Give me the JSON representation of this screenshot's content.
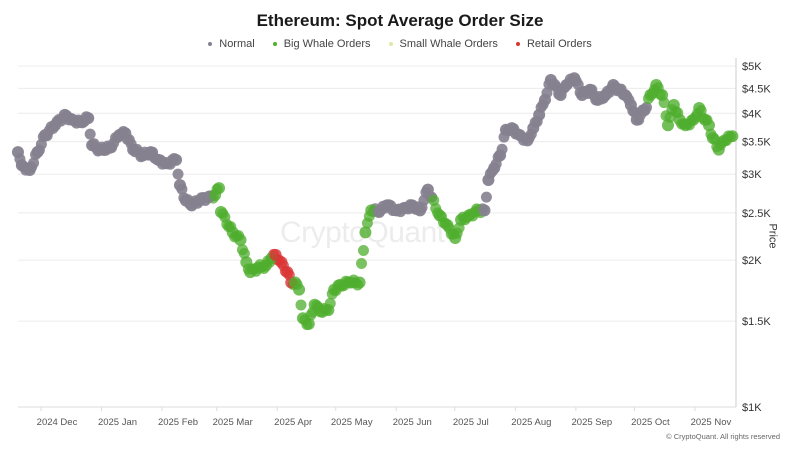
{
  "chart_data": {
    "type": "scatter",
    "title": "Ethereum: Spot Average Order Size",
    "ylabel": "Price",
    "xlabel": "",
    "yscale": "log",
    "ylim": [
      1000,
      5000
    ],
    "x_unit": "days since 2024-11-01",
    "xlim": [
      10,
      378
    ],
    "x_ticks": [
      {
        "day": 30,
        "label": "2024 Dec"
      },
      {
        "day": 61,
        "label": "2025 Jan"
      },
      {
        "day": 92,
        "label": "2025 Feb"
      },
      {
        "day": 120,
        "label": "2025 Mar"
      },
      {
        "day": 151,
        "label": "2025 Apr"
      },
      {
        "day": 181,
        "label": "2025 May"
      },
      {
        "day": 212,
        "label": "2025 Jun"
      },
      {
        "day": 242,
        "label": "2025 Jul"
      },
      {
        "day": 273,
        "label": "2025 Aug"
      },
      {
        "day": 304,
        "label": "2025 Sep"
      },
      {
        "day": 334,
        "label": "2025 Oct"
      },
      {
        "day": 365,
        "label": "2025 Nov"
      }
    ],
    "y_ticks": [
      {
        "value": 5000,
        "label": "$5K"
      },
      {
        "value": 4500,
        "label": "$4.5K"
      },
      {
        "value": 4000,
        "label": "$4K"
      },
      {
        "value": 3500,
        "label": "$3.5K"
      },
      {
        "value": 3000,
        "label": "$3K"
      },
      {
        "value": 2500,
        "label": "$2.5K"
      },
      {
        "value": 2000,
        "label": "$2K"
      },
      {
        "value": 1500,
        "label": "$1.5K"
      },
      {
        "value": 1000,
        "label": "$1K"
      }
    ],
    "legend_position": "top-center",
    "series": [
      {
        "key": "N",
        "name": "Normal",
        "color": "#85818f"
      },
      {
        "key": "B",
        "name": "Big Whale Orders",
        "color": "#4fae2e"
      },
      {
        "key": "S",
        "name": "Small Whale Orders",
        "color": "#dfe9a3"
      },
      {
        "key": "R",
        "name": "Retail Orders",
        "color": "#d93535"
      }
    ],
    "points": [
      [
        10,
        3330,
        "N"
      ],
      [
        12,
        3130,
        "N"
      ],
      [
        16,
        3060,
        "N"
      ],
      [
        20,
        3330,
        "N"
      ],
      [
        24,
        3610,
        "N"
      ],
      [
        29,
        3780,
        "N"
      ],
      [
        34,
        3970,
        "N"
      ],
      [
        38,
        3880,
        "N"
      ],
      [
        42,
        3840,
        "N"
      ],
      [
        46,
        3910,
        "N"
      ],
      [
        48,
        3440,
        "N"
      ],
      [
        52,
        3370,
        "N"
      ],
      [
        57,
        3400,
        "N"
      ],
      [
        62,
        3610,
        "N"
      ],
      [
        65,
        3640,
        "N"
      ],
      [
        69,
        3370,
        "N"
      ],
      [
        74,
        3280,
        "N"
      ],
      [
        78,
        3330,
        "N"
      ],
      [
        82,
        3210,
        "N"
      ],
      [
        86,
        3160,
        "N"
      ],
      [
        91,
        3210,
        "N"
      ],
      [
        93,
        2850,
        "N"
      ],
      [
        96,
        2650,
        "N"
      ],
      [
        99,
        2590,
        "N"
      ],
      [
        103,
        2650,
        "N"
      ],
      [
        108,
        2700,
        "N"
      ],
      [
        111,
        2720,
        "B"
      ],
      [
        113,
        2810,
        "B"
      ],
      [
        114,
        2510,
        "B"
      ],
      [
        120,
        2280,
        "B"
      ],
      [
        124,
        2200,
        "B"
      ],
      [
        127,
        1980,
        "B"
      ],
      [
        129,
        1890,
        "B"
      ],
      [
        133,
        1930,
        "B"
      ],
      [
        137,
        1950,
        "B"
      ],
      [
        140,
        2020,
        "B"
      ],
      [
        142,
        2050,
        "R"
      ],
      [
        145,
        1980,
        "R"
      ],
      [
        148,
        1890,
        "R"
      ],
      [
        150,
        1800,
        "R"
      ],
      [
        152,
        1800,
        "B"
      ],
      [
        154,
        1740,
        "B"
      ],
      [
        156,
        1520,
        "B"
      ],
      [
        159,
        1480,
        "B"
      ],
      [
        162,
        1620,
        "B"
      ],
      [
        165,
        1570,
        "B"
      ],
      [
        169,
        1580,
        "B"
      ],
      [
        172,
        1740,
        "B"
      ],
      [
        175,
        1780,
        "B"
      ],
      [
        180,
        1800,
        "B"
      ],
      [
        185,
        1800,
        "B"
      ],
      [
        188,
        2280,
        "B"
      ],
      [
        191,
        2530,
        "B"
      ],
      [
        195,
        2510,
        "N"
      ],
      [
        199,
        2590,
        "N"
      ],
      [
        204,
        2530,
        "N"
      ],
      [
        208,
        2560,
        "N"
      ],
      [
        212,
        2590,
        "N"
      ],
      [
        216,
        2530,
        "N"
      ],
      [
        220,
        2790,
        "N"
      ],
      [
        226,
        2470,
        "B"
      ],
      [
        230,
        2360,
        "B"
      ],
      [
        234,
        2220,
        "B"
      ],
      [
        237,
        2420,
        "B"
      ],
      [
        241,
        2470,
        "B"
      ],
      [
        246,
        2530,
        "B"
      ],
      [
        249,
        2530,
        "N"
      ],
      [
        251,
        2920,
        "N"
      ],
      [
        254,
        3090,
        "N"
      ],
      [
        257,
        3280,
        "N"
      ],
      [
        260,
        3700,
        "N"
      ],
      [
        263,
        3730,
        "N"
      ],
      [
        267,
        3610,
        "N"
      ],
      [
        271,
        3520,
        "N"
      ],
      [
        274,
        3730,
        "N"
      ],
      [
        277,
        3970,
        "N"
      ],
      [
        280,
        4260,
        "N"
      ],
      [
        283,
        4680,
        "N"
      ],
      [
        288,
        4360,
        "N"
      ],
      [
        291,
        4570,
        "N"
      ],
      [
        295,
        4720,
        "N"
      ],
      [
        299,
        4360,
        "N"
      ],
      [
        303,
        4470,
        "N"
      ],
      [
        307,
        4260,
        "N"
      ],
      [
        311,
        4360,
        "N"
      ],
      [
        315,
        4570,
        "N"
      ],
      [
        318,
        4470,
        "N"
      ],
      [
        321,
        4360,
        "N"
      ],
      [
        324,
        4160,
        "N"
      ],
      [
        327,
        3880,
        "N"
      ],
      [
        331,
        4060,
        "N"
      ],
      [
        334,
        4360,
        "B"
      ],
      [
        337,
        4570,
        "B"
      ],
      [
        340,
        4360,
        "B"
      ],
      [
        343,
        3780,
        "B"
      ],
      [
        346,
        4160,
        "B"
      ],
      [
        349,
        3880,
        "B"
      ],
      [
        352,
        3780,
        "B"
      ],
      [
        356,
        3880,
        "B"
      ],
      [
        359,
        4100,
        "B"
      ],
      [
        362,
        3880,
        "B"
      ],
      [
        364,
        3780,
        "B"
      ],
      [
        366,
        3560,
        "B"
      ],
      [
        369,
        3370,
        "B"
      ],
      [
        372,
        3520,
        "B"
      ],
      [
        376,
        3590,
        "B"
      ]
    ]
  },
  "watermark": "CryptoQuant",
  "footer": "© CryptoQuant. All rights reserved"
}
